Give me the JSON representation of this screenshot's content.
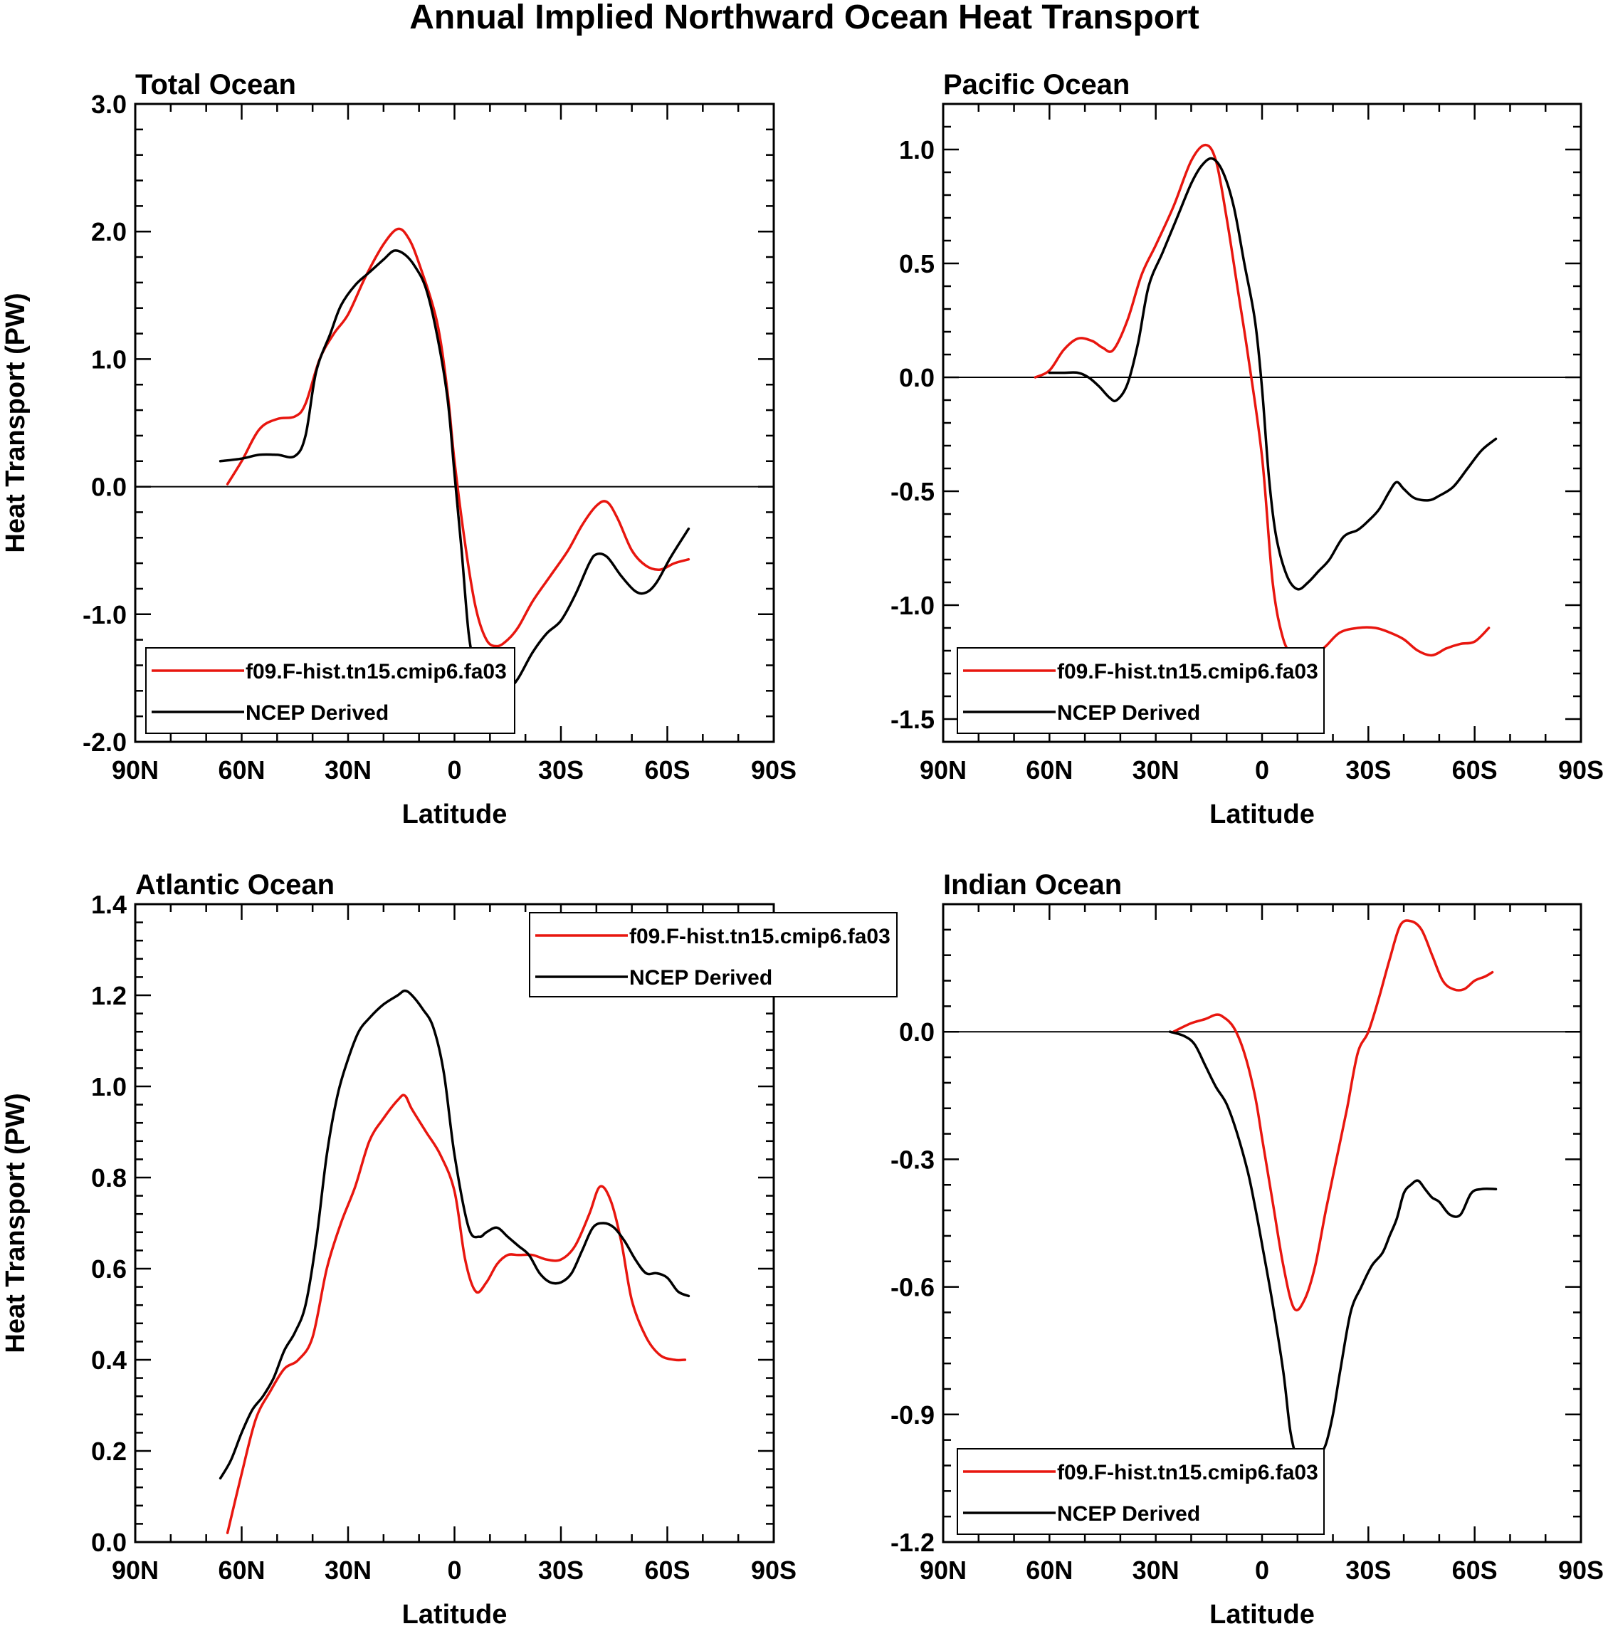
{
  "figure_title": "Annual Implied Northward Ocean Heat Transport",
  "colors": {
    "model": "#e8160f",
    "obs": "#000000"
  },
  "chart_data": [
    {
      "type": "line",
      "title": "Total Ocean",
      "xlabel": "Latitude",
      "ylabel": "Heat Transport (PW)",
      "xlim": [
        90,
        -90
      ],
      "ylim": [
        -2.0,
        3.0
      ],
      "xticks": [
        90,
        60,
        30,
        0,
        -30,
        -60,
        -90
      ],
      "xtick_labels": [
        "90N",
        "60N",
        "30N",
        "0",
        "30S",
        "60S",
        "90S"
      ],
      "yticks": [
        -2,
        -1,
        0,
        1,
        2,
        3
      ],
      "ytick_labels": [
        "-2.0",
        "-1.0",
        "0.0",
        "1.0",
        "2.0",
        "3.0"
      ],
      "zero_line": true,
      "legend": "bottom-left",
      "series": [
        {
          "name": "f09.F-hist.tn15.cmip6.fa03",
          "color": "#e8160f",
          "x": [
            64,
            60,
            55,
            50,
            45,
            42,
            38,
            34,
            30,
            25,
            20,
            16,
            13,
            10,
            5,
            2,
            0,
            -3,
            -6,
            -9,
            -12,
            -15,
            -18,
            -22,
            -27,
            -32,
            -36,
            -40,
            -43,
            -46,
            -50,
            -54,
            -58,
            -62,
            -66
          ],
          "y": [
            0.02,
            0.2,
            0.45,
            0.53,
            0.55,
            0.65,
            1.0,
            1.2,
            1.35,
            1.65,
            1.9,
            2.02,
            1.95,
            1.75,
            1.3,
            0.75,
            0.2,
            -0.45,
            -0.95,
            -1.2,
            -1.25,
            -1.2,
            -1.1,
            -0.9,
            -0.7,
            -0.5,
            -0.3,
            -0.15,
            -0.12,
            -0.25,
            -0.5,
            -0.62,
            -0.65,
            -0.6,
            -0.57
          ]
        },
        {
          "name": "NCEP Derived",
          "color": "#000000",
          "x": [
            66,
            60,
            55,
            50,
            45,
            42,
            39,
            35,
            32,
            28,
            24,
            20,
            17,
            14,
            11,
            8,
            5,
            2,
            0,
            -2,
            -4,
            -6,
            -8,
            -10,
            -12,
            -15,
            -18,
            -22,
            -26,
            -30,
            -34,
            -38,
            -40,
            -43,
            -47,
            -51,
            -54,
            -57,
            -61,
            -66
          ],
          "y": [
            0.2,
            0.22,
            0.25,
            0.25,
            0.24,
            0.4,
            0.9,
            1.2,
            1.42,
            1.58,
            1.68,
            1.78,
            1.85,
            1.82,
            1.72,
            1.55,
            1.2,
            0.7,
            0.1,
            -0.5,
            -1.15,
            -1.45,
            -1.62,
            -1.68,
            -1.65,
            -1.6,
            -1.5,
            -1.3,
            -1.15,
            -1.05,
            -0.85,
            -0.6,
            -0.53,
            -0.55,
            -0.7,
            -0.82,
            -0.83,
            -0.75,
            -0.55,
            -0.33
          ]
        }
      ]
    },
    {
      "type": "line",
      "title": "Pacific Ocean",
      "xlabel": "Latitude",
      "ylabel": "",
      "xlim": [
        90,
        -90
      ],
      "ylim": [
        -1.6,
        1.2
      ],
      "xticks": [
        90,
        60,
        30,
        0,
        -30,
        -60,
        -90
      ],
      "xtick_labels": [
        "90N",
        "60N",
        "30N",
        "0",
        "30S",
        "60S",
        "90S"
      ],
      "yticks": [
        -1.5,
        -1.0,
        -0.5,
        0.0,
        0.5,
        1.0
      ],
      "ytick_labels": [
        "-1.5",
        "-1.0",
        "-0.5",
        "0.0",
        "0.5",
        "1.0"
      ],
      "zero_line": true,
      "legend": "bottom-left",
      "series": [
        {
          "name": "f09.F-hist.tn15.cmip6.fa03",
          "color": "#e8160f",
          "x": [
            64,
            60,
            56,
            52,
            48,
            45,
            42,
            38,
            34,
            30,
            25,
            20,
            16,
            13,
            10,
            7,
            4,
            0,
            -3,
            -6,
            -9,
            -12,
            -15,
            -18,
            -22,
            -27,
            -32,
            -36,
            -40,
            -44,
            -48,
            -52,
            -56,
            -60,
            -64
          ],
          "y": [
            0.0,
            0.03,
            0.12,
            0.17,
            0.16,
            0.13,
            0.12,
            0.25,
            0.45,
            0.58,
            0.75,
            0.95,
            1.02,
            0.95,
            0.7,
            0.4,
            0.1,
            -0.35,
            -0.9,
            -1.15,
            -1.22,
            -1.24,
            -1.22,
            -1.18,
            -1.12,
            -1.1,
            -1.1,
            -1.12,
            -1.15,
            -1.2,
            -1.22,
            -1.19,
            -1.17,
            -1.16,
            -1.1
          ]
        },
        {
          "name": "NCEP Derived",
          "color": "#000000",
          "x": [
            60,
            56,
            52,
            49,
            46,
            43,
            41,
            38,
            35,
            32,
            28,
            24,
            20,
            17,
            14,
            11,
            8,
            5,
            2,
            0,
            -2,
            -4,
            -7,
            -10,
            -13,
            -16,
            -19,
            -23,
            -27,
            -30,
            -33,
            -36,
            -38,
            -40,
            -43,
            -47,
            -50,
            -54,
            -58,
            -62,
            -66
          ],
          "y": [
            0.02,
            0.02,
            0.02,
            0.0,
            -0.04,
            -0.09,
            -0.1,
            -0.03,
            0.15,
            0.4,
            0.55,
            0.7,
            0.85,
            0.93,
            0.96,
            0.9,
            0.75,
            0.5,
            0.25,
            -0.05,
            -0.45,
            -0.7,
            -0.87,
            -0.93,
            -0.9,
            -0.85,
            -0.8,
            -0.7,
            -0.67,
            -0.63,
            -0.58,
            -0.5,
            -0.46,
            -0.49,
            -0.53,
            -0.54,
            -0.52,
            -0.48,
            -0.4,
            -0.32,
            -0.27
          ]
        }
      ]
    },
    {
      "type": "line",
      "title": "Atlantic Ocean",
      "xlabel": "Latitude",
      "ylabel": "Heat Transport (PW)",
      "xlim": [
        90,
        -90
      ],
      "ylim": [
        0.0,
        1.4
      ],
      "xticks": [
        90,
        60,
        30,
        0,
        -30,
        -60,
        -90
      ],
      "xtick_labels": [
        "90N",
        "60N",
        "30N",
        "0",
        "30S",
        "60S",
        "90S"
      ],
      "yticks": [
        0.0,
        0.2,
        0.4,
        0.6,
        0.8,
        1.0,
        1.2,
        1.4
      ],
      "ytick_labels": [
        "0.0",
        "0.2",
        "0.4",
        "0.6",
        "0.8",
        "1.0",
        "1.2",
        "1.4"
      ],
      "zero_line": false,
      "legend": "top-right",
      "series": [
        {
          "name": "f09.F-hist.tn15.cmip6.fa03",
          "color": "#e8160f",
          "x": [
            64,
            60,
            56,
            52,
            48,
            44,
            40,
            36,
            32,
            28,
            24,
            20,
            16,
            14,
            12,
            8,
            4,
            0,
            -3,
            -6,
            -9,
            -12,
            -15,
            -18,
            -22,
            -26,
            -30,
            -34,
            -38,
            -41,
            -44,
            -47,
            -50,
            -54,
            -58,
            -62,
            -65
          ],
          "y": [
            0.02,
            0.15,
            0.27,
            0.33,
            0.38,
            0.4,
            0.45,
            0.6,
            0.7,
            0.78,
            0.88,
            0.93,
            0.97,
            0.98,
            0.95,
            0.9,
            0.85,
            0.77,
            0.62,
            0.55,
            0.57,
            0.61,
            0.63,
            0.63,
            0.63,
            0.62,
            0.62,
            0.65,
            0.72,
            0.78,
            0.75,
            0.66,
            0.53,
            0.45,
            0.41,
            0.4,
            0.4
          ]
        },
        {
          "name": "NCEP Derived",
          "color": "#000000",
          "x": [
            66,
            63,
            60,
            57,
            54,
            51,
            48,
            45,
            42,
            39,
            36,
            33,
            30,
            27,
            24,
            20,
            16,
            14,
            12,
            9,
            6,
            3,
            0,
            -4,
            -7,
            -9,
            -12,
            -15,
            -18,
            -21,
            -24,
            -27,
            -30,
            -33,
            -36,
            -39,
            -42,
            -45,
            -48,
            -51,
            -54,
            -57,
            -60,
            -63,
            -66
          ],
          "y": [
            0.14,
            0.18,
            0.24,
            0.29,
            0.32,
            0.36,
            0.42,
            0.46,
            0.52,
            0.66,
            0.85,
            0.98,
            1.06,
            1.12,
            1.15,
            1.18,
            1.2,
            1.21,
            1.2,
            1.17,
            1.13,
            1.03,
            0.85,
            0.69,
            0.67,
            0.68,
            0.69,
            0.67,
            0.65,
            0.63,
            0.59,
            0.57,
            0.57,
            0.59,
            0.64,
            0.69,
            0.7,
            0.69,
            0.66,
            0.62,
            0.59,
            0.59,
            0.58,
            0.55,
            0.54
          ]
        }
      ]
    },
    {
      "type": "line",
      "title": "Indian Ocean",
      "xlabel": "Latitude",
      "ylabel": "",
      "xlim": [
        90,
        -90
      ],
      "ylim": [
        -1.2,
        0.3
      ],
      "xticks": [
        90,
        60,
        30,
        0,
        -30,
        -60,
        -90
      ],
      "xtick_labels": [
        "90N",
        "60N",
        "30N",
        "0",
        "30S",
        "60S",
        "90S"
      ],
      "yticks": [
        -1.2,
        -0.9,
        -0.6,
        -0.3,
        0.0
      ],
      "ytick_labels": [
        "-1.2",
        "-0.9",
        "-0.6",
        "-0.3",
        "0.0"
      ],
      "zero_line": true,
      "legend": "bottom-left",
      "series": [
        {
          "name": "f09.F-hist.tn15.cmip6.fa03",
          "color": "#e8160f",
          "x": [
            25,
            20,
            16,
            13,
            11,
            8,
            5,
            2,
            0,
            -3,
            -6,
            -9,
            -12,
            -15,
            -18,
            -21,
            -24,
            -27,
            -30,
            -33,
            -36,
            -39,
            -42,
            -45,
            -48,
            -51,
            -54,
            -57,
            -60,
            -63,
            -65
          ],
          "y": [
            0.0,
            0.02,
            0.03,
            0.04,
            0.035,
            0.01,
            -0.05,
            -0.15,
            -0.25,
            -0.4,
            -0.55,
            -0.65,
            -0.63,
            -0.55,
            -0.42,
            -0.3,
            -0.18,
            -0.05,
            0.0,
            0.08,
            0.17,
            0.25,
            0.26,
            0.24,
            0.18,
            0.12,
            0.1,
            0.1,
            0.12,
            0.13,
            0.14
          ]
        },
        {
          "name": "NCEP Derived",
          "color": "#000000",
          "x": [
            26,
            22,
            19,
            16,
            13,
            10,
            7,
            4,
            2,
            0,
            -3,
            -6,
            -8,
            -10,
            -12,
            -14,
            -16,
            -18,
            -20,
            -22,
            -25,
            -28,
            -31,
            -34,
            -36,
            -38,
            -40,
            -42,
            -44,
            -46,
            -48,
            -50,
            -53,
            -56,
            -59,
            -62,
            -66
          ],
          "y": [
            0.0,
            -0.01,
            -0.03,
            -0.08,
            -0.13,
            -0.17,
            -0.24,
            -0.33,
            -0.41,
            -0.5,
            -0.64,
            -0.8,
            -0.94,
            -1.01,
            -1.04,
            -1.03,
            -1.0,
            -0.97,
            -0.9,
            -0.8,
            -0.66,
            -0.6,
            -0.55,
            -0.52,
            -0.48,
            -0.44,
            -0.38,
            -0.36,
            -0.35,
            -0.37,
            -0.39,
            -0.4,
            -0.43,
            -0.43,
            -0.38,
            -0.37,
            -0.37
          ]
        }
      ]
    }
  ]
}
